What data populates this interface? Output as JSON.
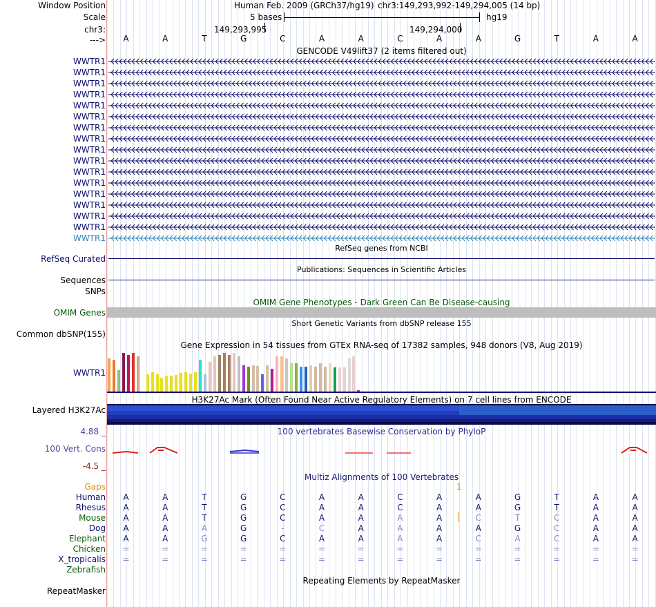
{
  "header": {
    "window_position_label": "Window Position",
    "scale_label": "Scale",
    "chrom_label": "chr3:",
    "strand_label": "--->",
    "assembly": "Human Feb. 2009 (GRCh37/hg19)",
    "position": "chr3:149,293,992-149,294,005 (14 bp)",
    "scale_text": "5 bases",
    "db": "hg19",
    "coord1": "149,293,995",
    "coord2": "149,294,000"
  },
  "bases": [
    "A",
    "A",
    "T",
    "G",
    "C",
    "A",
    "A",
    "C",
    "A",
    "A",
    "G",
    "T",
    "A",
    "A"
  ],
  "gencode": {
    "title": "GENCODE V49lift37 (2 items filtered out)",
    "gene_label": "WWTR1",
    "row_count": 17,
    "highlight_color": "#2f85b5",
    "color": "#0d0d6e"
  },
  "refseq": {
    "title": "RefSeq genes from NCBI",
    "label": "RefSeq Curated"
  },
  "publications": {
    "title": "Publications: Sequences in Scientific Articles",
    "label1": "Sequences",
    "label2": "SNPs"
  },
  "omim": {
    "title": "OMIM Gene Phenotypes - Dark Green Can Be Disease-causing",
    "label": "OMIM Genes",
    "color": "#0a5a0a"
  },
  "dbsnp": {
    "title": "Short Genetic Variants from dbSNP release 155",
    "label": "Common dbSNP(155)"
  },
  "gtex": {
    "title": "Gene Expression in 54 tissues from GTEx RNA-seq of 17382 samples, 948 donors (V8, Aug 2019)",
    "label": "WWTR1",
    "chart_data": {
      "type": "bar",
      "values": [
        9.5,
        9,
        6,
        11,
        10.5,
        11,
        10,
        0,
        5,
        5.5,
        5,
        4,
        4.5,
        4.5,
        4.8,
        5.3,
        5.5,
        5.2,
        5.5,
        9,
        5,
        8.5,
        10,
        10.5,
        11,
        10.5,
        11,
        10,
        7.5,
        7,
        7.5,
        7.3,
        5,
        7.5,
        6.5,
        10,
        10,
        9.5,
        8,
        8,
        7,
        7,
        7.5,
        7,
        8,
        7,
        8,
        6.8,
        6.8,
        6.8,
        9.5,
        10,
        0.3,
        0
      ],
      "colors": [
        "#f2a553",
        "#f07a26",
        "#8fbf7a",
        "#8b1a4b",
        "#c0145a",
        "#e0312a",
        "#c8ad92",
        "#ffffff",
        "#e8e020",
        "#e8e020",
        "#e8e020",
        "#e8e020",
        "#e8e020",
        "#e8e020",
        "#e8e020",
        "#e8e020",
        "#e8e020",
        "#e8e020",
        "#e8e020",
        "#28e0d0",
        "#a9c4d8",
        "#e5c5c0",
        "#e5c5c0",
        "#a08060",
        "#a08060",
        "#a08060",
        "#e5c5c0",
        "#c0c0c0",
        "#9a3ccc",
        "#7a8a20",
        "#d4c0a8",
        "#d4c0a8",
        "#6060ff",
        "#d4c0a8",
        "#b02080",
        "#ffb0c0",
        "#f8c08a",
        "#c8c8c8",
        "#b8e08a",
        "#90b040",
        "#3c8ef0",
        "#2060c0",
        "#e8c8b0",
        "#d4b8a0",
        "#d4b8a0",
        "#d4b8a0",
        "#e8d8c0",
        "#10a050",
        "#f0d0d0",
        "#e8d0c8",
        "#e0d8d8",
        "#e8d0d0",
        "#c020f0",
        "#ffffff"
      ]
    }
  },
  "h3k27ac": {
    "title": "H3K27Ac Mark (Often Found Near Active Regulatory Elements) on 7 cell lines from ENCODE",
    "label": "Layered H3K27Ac"
  },
  "phylop": {
    "title": "100 vertebrates Basewise Conservation by PhyloP",
    "label": "100 Vert. Cons",
    "max": "4.88 _",
    "min": "-4.5 _"
  },
  "multiz": {
    "title": "Multiz Alignments of 100 Vertebrates",
    "gaps_label": "Gaps",
    "gap_marker": "1",
    "species": [
      {
        "name": "Human",
        "color": "#0d0d6e",
        "bases": [
          "A",
          "A",
          "T",
          "G",
          "C",
          "A",
          "A",
          "C",
          "A",
          "A",
          "G",
          "T",
          "A",
          "A"
        ]
      },
      {
        "name": "Rhesus",
        "color": "#0d0d6e",
        "bases": [
          "A",
          "A",
          "T",
          "G",
          "C",
          "A",
          "A",
          "C",
          "A",
          "A",
          "G",
          "T",
          "A",
          "A"
        ]
      },
      {
        "name": "Mouse",
        "color": "#0a5a0a",
        "bases": [
          "A",
          "A",
          "T",
          "G",
          "C",
          "A",
          "A",
          "A",
          "A",
          "C",
          "T",
          "C",
          "A",
          "A"
        ]
      },
      {
        "name": "Dog",
        "color": "#0d0d6e",
        "bases": [
          "A",
          "A",
          "A",
          "G",
          "-",
          "C",
          "A",
          "A",
          "A",
          "A",
          "G",
          "C",
          "A",
          "A"
        ]
      },
      {
        "name": "Elephant",
        "color": "#0a5a0a",
        "bases": [
          "A",
          "A",
          "G",
          "G",
          "C",
          "A",
          "A",
          "A",
          "A",
          "C",
          "A",
          "C",
          "A",
          "A"
        ]
      },
      {
        "name": "Chicken",
        "color": "#0a5a0a",
        "bases": [
          "=",
          "=",
          "=",
          "=",
          "=",
          "=",
          "=",
          "=",
          "=",
          "=",
          "=",
          "=",
          "=",
          "="
        ]
      },
      {
        "name": "X_tropicalis",
        "color": "#0d0d6e",
        "bases": [
          "=",
          "=",
          "=",
          "=",
          "=",
          "=",
          "=",
          "=",
          "=",
          "=",
          "=",
          "=",
          "=",
          "="
        ]
      },
      {
        "name": "Zebrafish",
        "color": "#0a5a0a",
        "bases": [
          "",
          "",
          "",
          "",
          "",
          "",
          "",
          "",
          "",
          "",
          "",
          "",
          "",
          ""
        ]
      }
    ]
  },
  "repeatmasker": {
    "title": "Repeating Elements by RepeatMasker",
    "label": "RepeatMasker"
  }
}
